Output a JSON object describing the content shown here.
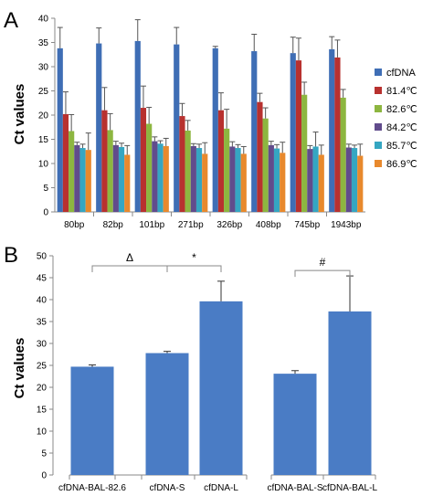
{
  "chart_data": [
    {
      "panel_label": "A",
      "type": "bar",
      "ylabel": "Ct values",
      "ylim": [
        0,
        40
      ],
      "yticks": [
        0,
        5,
        10,
        15,
        20,
        25,
        30,
        35,
        40
      ],
      "legend_position": "right",
      "grid": false,
      "categories": [
        "80bp",
        "82bp",
        "101bp",
        "271bp",
        "326bp",
        "408bp",
        "745bp",
        "1943bp"
      ],
      "series": [
        {
          "name": "cfDNA",
          "color": "#3f6eb5",
          "values": [
            33.8,
            34.8,
            35.3,
            34.6,
            33.8,
            33.2,
            32.8,
            33.6
          ],
          "errors": [
            4.3,
            3.2,
            4.4,
            3.5,
            0.4,
            3.5,
            3.3,
            2.6
          ]
        },
        {
          "name": "81.4℃",
          "color": "#b8312f",
          "values": [
            20.2,
            21.0,
            21.5,
            19.8,
            21.0,
            22.7,
            31.3,
            31.9
          ],
          "errors": [
            4.6,
            4.7,
            4.5,
            2.6,
            3.6,
            1.8,
            4.6,
            3.6
          ]
        },
        {
          "name": "82.6℃",
          "color": "#8db640",
          "values": [
            16.7,
            16.9,
            18.2,
            16.8,
            17.2,
            19.3,
            24.2,
            23.6
          ],
          "errors": [
            3.4,
            3.4,
            3.4,
            2.1,
            4.0,
            2.2,
            2.6,
            1.7
          ]
        },
        {
          "name": "84.2℃",
          "color": "#614c8c",
          "values": [
            13.8,
            13.8,
            14.6,
            13.6,
            13.5,
            13.8,
            13.0,
            13.3
          ],
          "errors": [
            0.6,
            0.8,
            0.9,
            0.5,
            1.0,
            0.8,
            0.7,
            0.7
          ]
        },
        {
          "name": "85.7℃",
          "color": "#35a6c2",
          "values": [
            13.2,
            13.4,
            14.1,
            13.2,
            13.2,
            13.1,
            13.5,
            13.2
          ],
          "errors": [
            0.8,
            0.8,
            0.6,
            0.8,
            0.7,
            0.8,
            3.0,
            0.6
          ]
        },
        {
          "name": "86.9℃",
          "color": "#e8892d",
          "values": [
            12.8,
            11.8,
            13.6,
            12.0,
            12.0,
            12.2,
            11.8,
            11.6
          ],
          "errors": [
            3.5,
            1.9,
            1.6,
            2.3,
            1.5,
            2.2,
            2.0,
            2.4
          ]
        }
      ]
    },
    {
      "panel_label": "B",
      "type": "bar",
      "ylabel": "Ct values",
      "ylim": [
        0,
        50
      ],
      "yticks": [
        0,
        5,
        10,
        15,
        20,
        25,
        30,
        35,
        40,
        45,
        50
      ],
      "grid": false,
      "bar_color": "#4a7cc5",
      "categories": [
        "cfDNA-BAL-82.6",
        "cfDNA-S",
        "cfDNA-L",
        "cfDNA-BAL-S",
        "cfDNA-BAL-L"
      ],
      "values": [
        24.7,
        27.8,
        39.6,
        23.1,
        37.3
      ],
      "errors": [
        0.4,
        0.4,
        4.6,
        0.7,
        8.1
      ],
      "significance": [
        {
          "symbol": "Δ",
          "from": 0,
          "to": 1
        },
        {
          "symbol": "*",
          "from": 1,
          "to": 2
        },
        {
          "symbol": "#",
          "from": 3,
          "to": 4
        }
      ]
    }
  ]
}
